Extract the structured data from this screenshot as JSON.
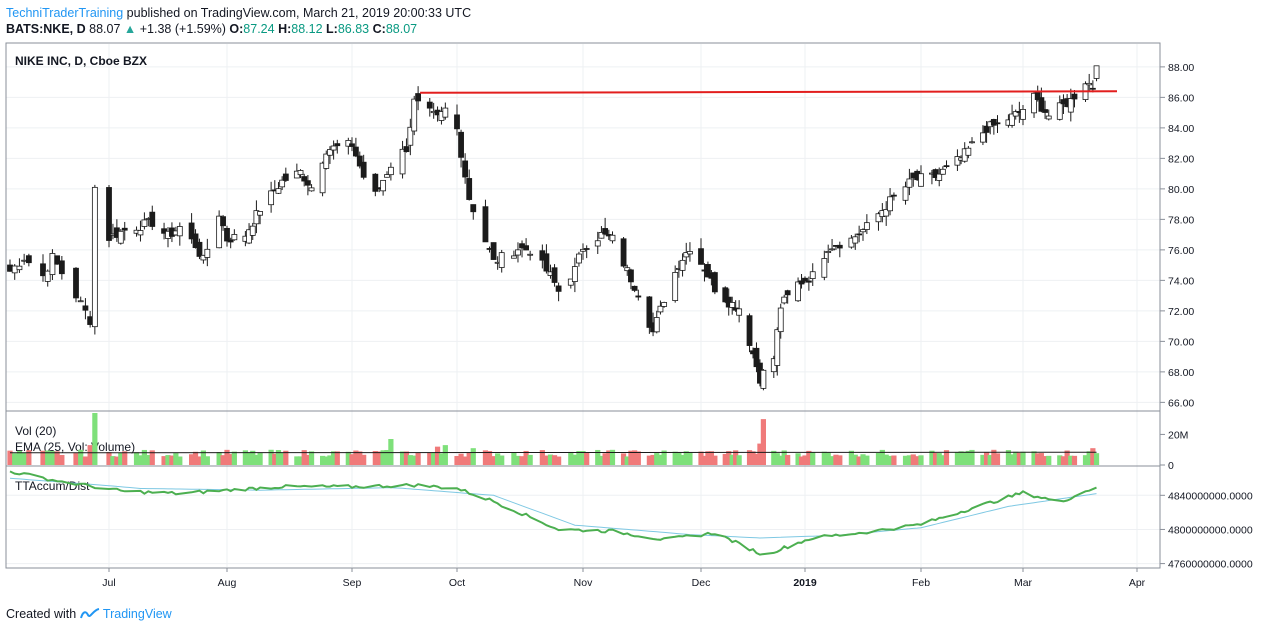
{
  "header": {
    "author": "TechniTraderTraining",
    "published": "published on TradingView.com, March 21, 2019 20:00:33 UTC",
    "symbol": "BATS:NKE, D",
    "last": "88.07",
    "arrow": "▲",
    "change": "+1.38 (+1.59%)",
    "o_label": "O:",
    "o": "87.24",
    "h_label": "H:",
    "h": "88.12",
    "l_label": "L:",
    "l": "86.83",
    "c_label": "C:",
    "c": "88.07"
  },
  "footer": {
    "created": "Created with",
    "brand": "TradingView"
  },
  "colors": {
    "up_volume": "#7ee07a",
    "down_volume": "#f07a7a",
    "resistance": "#e21e1e",
    "ttaccum": "#4caf50",
    "ttaccum_avg": "#7ec8e3",
    "ema": "#1b1b1b",
    "grid": "#eef0f3"
  },
  "chart_data": {
    "type": "candlestick",
    "title": "NIKE INC, D, Cboe BZX",
    "x_labels": [
      "Jul",
      "Aug",
      "Sep",
      "Oct",
      "Nov",
      "Dec",
      "2019",
      "Feb",
      "Mar",
      "Apr"
    ],
    "x_label_dates": [
      "2018-07-02",
      "2018-08-01",
      "2018-09-04",
      "2018-10-01",
      "2018-11-01",
      "2018-12-03",
      "2019-01-02",
      "2019-02-01",
      "2019-03-01",
      "2019-04-01"
    ],
    "price_ticks": [
      "88.00",
      "86.00",
      "84.00",
      "82.00",
      "80.00",
      "78.00",
      "76.00",
      "74.00",
      "72.00",
      "70.00",
      "68.00",
      "66.00"
    ],
    "ylim": [
      65.5,
      89.5
    ],
    "resistance_line": {
      "start_date": "2018-09-21",
      "end_date": "2019-03-21",
      "start_value": 86.3,
      "end_value": 86.4
    },
    "price_path": [
      [
        "2018-06-11",
        74.6
      ],
      [
        "2018-06-14",
        75.5
      ],
      [
        "2018-06-18",
        74.3
      ],
      [
        "2018-06-20",
        75.5
      ],
      [
        "2018-06-25",
        73.0
      ],
      [
        "2018-06-28",
        71.4
      ],
      [
        "2018-06-29",
        80.1
      ],
      [
        "2018-07-02",
        76.8
      ],
      [
        "2018-07-06",
        77.3
      ],
      [
        "2018-07-13",
        77.8
      ],
      [
        "2018-07-17",
        76.9
      ],
      [
        "2018-07-20",
        77.5
      ],
      [
        "2018-07-24",
        76.3
      ],
      [
        "2018-07-26",
        75.3
      ],
      [
        "2018-07-30",
        78.4
      ],
      [
        "2018-08-01",
        76.7
      ],
      [
        "2018-08-06",
        77.0
      ],
      [
        "2018-08-10",
        78.7
      ],
      [
        "2018-08-16",
        80.5
      ],
      [
        "2018-08-21",
        81.1
      ],
      [
        "2018-08-24",
        80.1
      ],
      [
        "2018-08-28",
        82.6
      ],
      [
        "2018-09-04",
        82.9
      ],
      [
        "2018-09-07",
        80.8
      ],
      [
        "2018-09-10",
        79.6
      ],
      [
        "2018-09-14",
        81.6
      ],
      [
        "2018-09-18",
        82.7
      ],
      [
        "2018-09-20",
        85.7
      ],
      [
        "2018-09-26",
        84.6
      ],
      [
        "2018-09-28",
        85.2
      ],
      [
        "2018-10-01",
        83.9
      ],
      [
        "2018-10-04",
        79.4
      ],
      [
        "2018-10-10",
        75.2
      ],
      [
        "2018-10-16",
        76.1
      ],
      [
        "2018-10-19",
        76.0
      ],
      [
        "2018-10-24",
        74.3
      ],
      [
        "2018-10-26",
        73.3
      ],
      [
        "2018-10-30",
        74.7
      ],
      [
        "2018-11-01",
        76.2
      ],
      [
        "2018-11-06",
        77.0
      ],
      [
        "2018-11-09",
        76.7
      ],
      [
        "2018-11-13",
        74.6
      ],
      [
        "2018-11-16",
        73.2
      ],
      [
        "2018-11-20",
        70.6
      ],
      [
        "2018-11-23",
        72.8
      ],
      [
        "2018-11-27",
        75.1
      ],
      [
        "2018-11-30",
        76.2
      ],
      [
        "2018-12-04",
        74.8
      ],
      [
        "2018-12-07",
        73.5
      ],
      [
        "2018-12-11",
        72.6
      ],
      [
        "2018-12-14",
        72.2
      ],
      [
        "2018-12-17",
        70.0
      ],
      [
        "2018-12-20",
        67.6
      ],
      [
        "2018-12-24",
        68.9
      ],
      [
        "2018-12-26",
        72.3
      ],
      [
        "2018-12-31",
        73.8
      ],
      [
        "2019-01-04",
        74.3
      ],
      [
        "2019-01-08",
        76.2
      ],
      [
        "2019-01-14",
        76.7
      ],
      [
        "2019-01-18",
        77.5
      ],
      [
        "2019-01-24",
        79.2
      ],
      [
        "2019-01-30",
        80.6
      ],
      [
        "2019-02-05",
        80.8
      ],
      [
        "2019-02-12",
        82.0
      ],
      [
        "2019-02-19",
        84.0
      ],
      [
        "2019-02-22",
        84.2
      ],
      [
        "2019-02-28",
        85.0
      ],
      [
        "2019-03-04",
        86.0
      ],
      [
        "2019-03-08",
        84.8
      ],
      [
        "2019-03-14",
        85.8
      ],
      [
        "2019-03-18",
        87.1
      ],
      [
        "2019-03-20",
        86.7
      ],
      [
        "2019-03-21",
        88.07
      ]
    ],
    "volume": {
      "label": "Vol (20)",
      "ema_label": "EMA (25, Vol: Volume)",
      "ticks": [
        "20M",
        "0"
      ],
      "ylim": [
        0,
        34000000
      ],
      "spikes": [
        {
          "date": "2018-06-29",
          "value": 35000000,
          "up": true
        },
        {
          "date": "2018-06-28",
          "value": 13000000,
          "up": false
        },
        {
          "date": "2018-09-14",
          "value": 17000000,
          "up": true
        },
        {
          "date": "2018-09-26",
          "value": 12000000,
          "up": false
        },
        {
          "date": "2018-09-28",
          "value": 13000000,
          "up": true
        },
        {
          "date": "2018-10-05",
          "value": 11000000,
          "up": true
        },
        {
          "date": "2018-12-21",
          "value": 30000000,
          "up": false
        },
        {
          "date": "2018-12-20",
          "value": 14000000,
          "up": false
        },
        {
          "date": "2019-03-20",
          "value": 11000000,
          "up": false
        }
      ],
      "ema_level": 8000000
    },
    "ttaccum": {
      "label": "TTAccum/Dist",
      "ticks": [
        "4840000000.0000",
        "4800000000.0000",
        "4760000000.0000"
      ],
      "ylim": [
        4756000000,
        4872000000
      ],
      "path": [
        [
          "2018-06-11",
          4868000000
        ],
        [
          "2018-06-22",
          4856000000
        ],
        [
          "2018-07-05",
          4845000000
        ],
        [
          "2018-07-20",
          4842000000
        ],
        [
          "2018-08-01",
          4846000000
        ],
        [
          "2018-08-15",
          4850000000
        ],
        [
          "2018-09-04",
          4850000000
        ],
        [
          "2018-09-20",
          4852000000
        ],
        [
          "2018-10-01",
          4848000000
        ],
        [
          "2018-10-10",
          4833000000
        ],
        [
          "2018-10-26",
          4800000000
        ],
        [
          "2018-11-09",
          4798000000
        ],
        [
          "2018-11-23",
          4788000000
        ],
        [
          "2018-12-07",
          4796000000
        ],
        [
          "2018-12-21",
          4770000000
        ],
        [
          "2019-01-04",
          4790000000
        ],
        [
          "2019-01-18",
          4797000000
        ],
        [
          "2019-02-01",
          4806000000
        ],
        [
          "2019-02-15",
          4825000000
        ],
        [
          "2019-03-01",
          4843000000
        ],
        [
          "2019-03-11",
          4832000000
        ],
        [
          "2019-03-21",
          4850000000
        ]
      ],
      "avg_path": [
        [
          "2018-06-11",
          4860000000
        ],
        [
          "2018-07-10",
          4848000000
        ],
        [
          "2018-08-10",
          4846000000
        ],
        [
          "2018-09-15",
          4849000000
        ],
        [
          "2018-10-10",
          4840000000
        ],
        [
          "2018-10-30",
          4805000000
        ],
        [
          "2018-11-30",
          4794000000
        ],
        [
          "2018-12-20",
          4790000000
        ],
        [
          "2019-01-10",
          4793000000
        ],
        [
          "2019-02-01",
          4802000000
        ],
        [
          "2019-02-25",
          4827000000
        ],
        [
          "2019-03-21",
          4842000000
        ]
      ]
    }
  }
}
